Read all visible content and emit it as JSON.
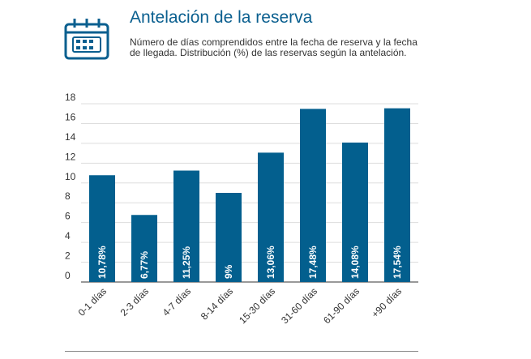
{
  "header": {
    "title": "Antelación de la reserva",
    "subtitle": "Número de días comprendidos entre la fecha de reserva y la fecha de llegada. Distribución (%) de las reservas según la antelación.",
    "icon": "calendar-icon"
  },
  "colors": {
    "bar": "#035f8e",
    "title": "#0a5f8f",
    "grid": "#dddddd",
    "axis": "#333333",
    "data_label": "#ffffff"
  },
  "chart_data": {
    "type": "bar",
    "title": "",
    "xlabel": "",
    "ylabel": "",
    "categories": [
      "0-1 días",
      "2-3 días",
      "4-7 días",
      "8-14 días",
      "15-30 días",
      "31-60 días",
      "61-90 días",
      "+90 días"
    ],
    "values": [
      10.78,
      6.77,
      11.25,
      9,
      13.06,
      17.48,
      14.08,
      17.54
    ],
    "data_labels": [
      "10,78%",
      "6,77%",
      "11,25%",
      "9%",
      "13,06%",
      "17,48%",
      "14,08%",
      "17,54%"
    ],
    "y_ticks": [
      "0",
      "2",
      "4",
      "6",
      "8",
      "10",
      "12",
      "14",
      "16",
      "18"
    ],
    "ylim": [
      0,
      18
    ],
    "grid": true,
    "legend": "none"
  }
}
